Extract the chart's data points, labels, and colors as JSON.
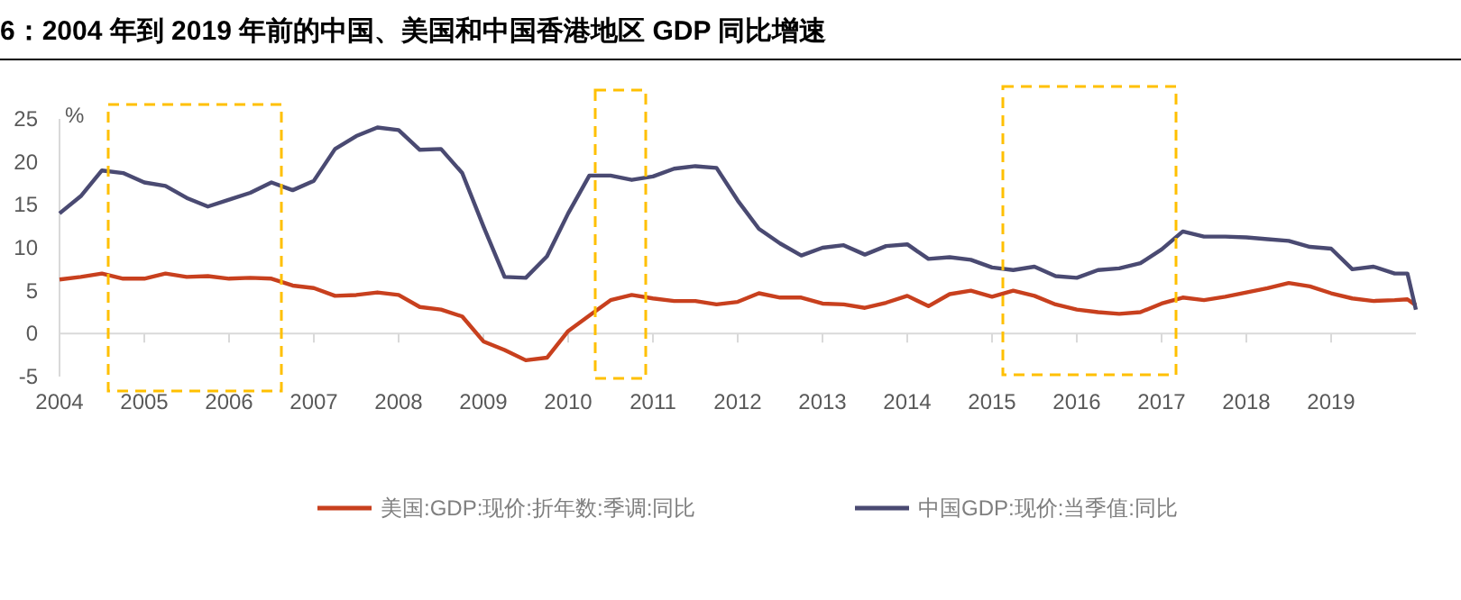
{
  "chart_data": {
    "type": "line",
    "title": "6：2004 年到 2019 年前的中国、美国和中国香港地区 GDP 同比增速",
    "ylabel": "%",
    "xlim": [
      2004,
      2020
    ],
    "xticks": [
      2004,
      2005,
      2006,
      2007,
      2008,
      2009,
      2010,
      2011,
      2012,
      2013,
      2014,
      2015,
      2016,
      2017,
      2018,
      2019
    ],
    "ylim": [
      -5,
      25
    ],
    "yticks": [
      -5,
      0,
      5,
      10,
      15,
      20,
      25
    ],
    "grid": false,
    "legend": "bottom",
    "marker": "none",
    "line_style": "solid",
    "series": [
      {
        "name": "美国:GDP:现价:折年数:季调:同比",
        "color": "#c8401e",
        "x": [
          2004,
          2004.25,
          2004.5,
          2004.75,
          2005,
          2005.25,
          2005.5,
          2005.75,
          2006,
          2006.25,
          2006.5,
          2006.75,
          2007,
          2007.25,
          2007.5,
          2007.75,
          2008,
          2008.25,
          2008.5,
          2008.75,
          2009,
          2009.25,
          2009.5,
          2009.75,
          2010,
          2010.25,
          2010.5,
          2010.75,
          2011,
          2011.25,
          2011.5,
          2011.75,
          2012,
          2012.25,
          2012.5,
          2012.75,
          2013,
          2013.25,
          2013.5,
          2013.75,
          2014,
          2014.25,
          2014.5,
          2014.75,
          2015,
          2015.25,
          2015.5,
          2015.75,
          2016,
          2016.25,
          2016.5,
          2016.75,
          2017,
          2017.25,
          2017.5,
          2017.75,
          2018,
          2018.25,
          2018.5,
          2018.75,
          2019,
          2019.25,
          2019.5,
          2019.75,
          2019.9,
          2020
        ],
        "values": [
          6.3,
          6.6,
          7.0,
          6.4,
          6.4,
          7.0,
          6.6,
          6.7,
          6.4,
          6.5,
          6.4,
          5.6,
          5.3,
          4.4,
          4.5,
          4.8,
          4.5,
          3.1,
          2.8,
          2.0,
          -0.9,
          -1.9,
          -3.1,
          -2.8,
          0.3,
          2.1,
          3.9,
          4.5,
          4.1,
          3.8,
          3.8,
          3.4,
          3.7,
          4.7,
          4.2,
          4.2,
          3.5,
          3.4,
          3.0,
          3.6,
          4.4,
          3.2,
          4.6,
          5.0,
          4.3,
          5.0,
          4.4,
          3.4,
          2.8,
          2.5,
          2.3,
          2.5,
          3.5,
          4.2,
          3.9,
          4.3,
          4.8,
          5.3,
          5.9,
          5.5,
          4.7,
          4.1,
          3.8,
          3.9,
          4.0,
          3.3
        ]
      },
      {
        "name": "中国GDP:现价:当季值:同比",
        "color": "#4a4a72",
        "x": [
          2004,
          2004.25,
          2004.5,
          2004.75,
          2005,
          2005.25,
          2005.5,
          2005.75,
          2006,
          2006.25,
          2006.5,
          2006.75,
          2007,
          2007.25,
          2007.5,
          2007.75,
          2008,
          2008.25,
          2008.5,
          2008.75,
          2009,
          2009.25,
          2009.5,
          2009.75,
          2010,
          2010.25,
          2010.5,
          2010.75,
          2011,
          2011.25,
          2011.5,
          2011.75,
          2012,
          2012.25,
          2012.5,
          2012.75,
          2013,
          2013.25,
          2013.5,
          2013.75,
          2014,
          2014.25,
          2014.5,
          2014.75,
          2015,
          2015.25,
          2015.5,
          2015.75,
          2016,
          2016.25,
          2016.5,
          2016.75,
          2017,
          2017.25,
          2017.5,
          2017.75,
          2018,
          2018.25,
          2018.5,
          2018.75,
          2019,
          2019.25,
          2019.5,
          2019.75,
          2019.9,
          2020
        ],
        "values": [
          14,
          16,
          19,
          18.7,
          17.6,
          17.2,
          15.8,
          14.8,
          15.6,
          16.4,
          17.6,
          16.7,
          17.8,
          21.5,
          23,
          24,
          23.7,
          21.4,
          21.5,
          18.7,
          12.5,
          6.6,
          6.5,
          9,
          14,
          18.4,
          18.4,
          17.9,
          18.3,
          19.2,
          19.5,
          19.3,
          15.5,
          12.2,
          10.5,
          9.1,
          10,
          10.3,
          9.2,
          10.2,
          10.4,
          8.7,
          8.9,
          8.6,
          7.7,
          7.4,
          7.8,
          6.7,
          6.5,
          7.4,
          7.6,
          8.2,
          9.8,
          11.9,
          11.3,
          11.3,
          11.2,
          11.0,
          10.8,
          10.1,
          9.9,
          7.5,
          7.8,
          7.0,
          7.0,
          2.8
        ]
      }
    ]
  }
}
